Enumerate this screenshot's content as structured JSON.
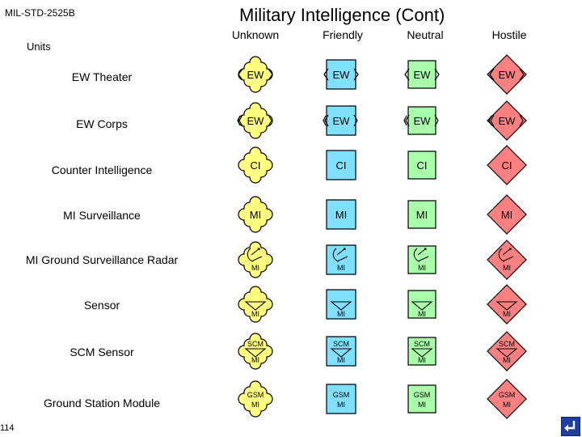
{
  "document": "MIL-STD-2525B",
  "title": "Military Intelligence (Cont)",
  "units_label": "Units",
  "columns": [
    "Unknown",
    "Friendly",
    "Neutral",
    "Hostile"
  ],
  "colors": {
    "Unknown": "#ffff80",
    "Friendly": "#80e0ff",
    "Neutral": "#aaffaa",
    "Hostile": "#ff8080",
    "frame": "#000000"
  },
  "rows": [
    {
      "label": "EW Theater",
      "text": "EW",
      "symbol": "ew-theater"
    },
    {
      "label": "EW Corps",
      "text": "EW",
      "symbol": "ew-corps"
    },
    {
      "label": "Counter Intelligence",
      "text": "CI",
      "symbol": "counter-intelligence"
    },
    {
      "label": "MI Surveillance",
      "text": "MI",
      "symbol": "mi-surveillance"
    },
    {
      "label": "MI Ground Surveillance Radar",
      "text": "MI",
      "symbol": "radar"
    },
    {
      "label": "Sensor",
      "text": "MI",
      "symbol": "sensor"
    },
    {
      "label": "SCM Sensor",
      "text": "SCM",
      "text2": "MI",
      "symbol": "scm-sensor"
    },
    {
      "label": "Ground Station Module",
      "text": "GSM",
      "text2": "MI",
      "symbol": "ground-station-module"
    }
  ],
  "page_number": "114",
  "nav_icon": "return-arrow-icon"
}
